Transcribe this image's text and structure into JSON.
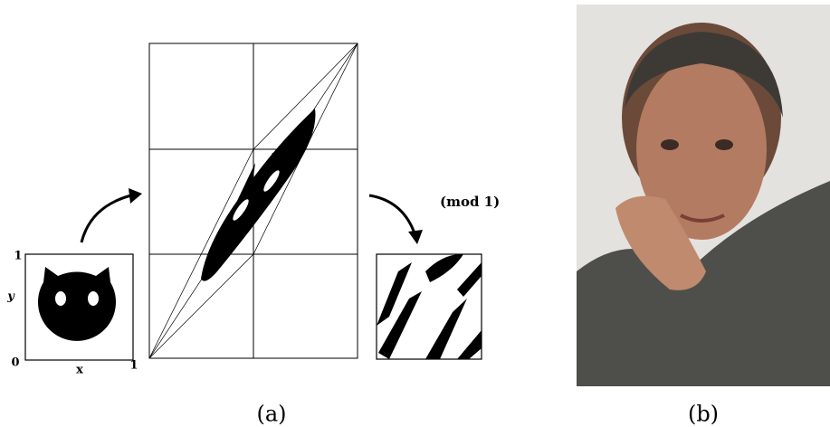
{
  "panel_a": {
    "axis": {
      "y_max": "1",
      "y_label": "y",
      "origin": "0",
      "x_label": "x",
      "x_max": "1"
    },
    "annotation": "(mod 1)",
    "caption": "(a)"
  },
  "panel_b": {
    "caption": "(b)"
  }
}
